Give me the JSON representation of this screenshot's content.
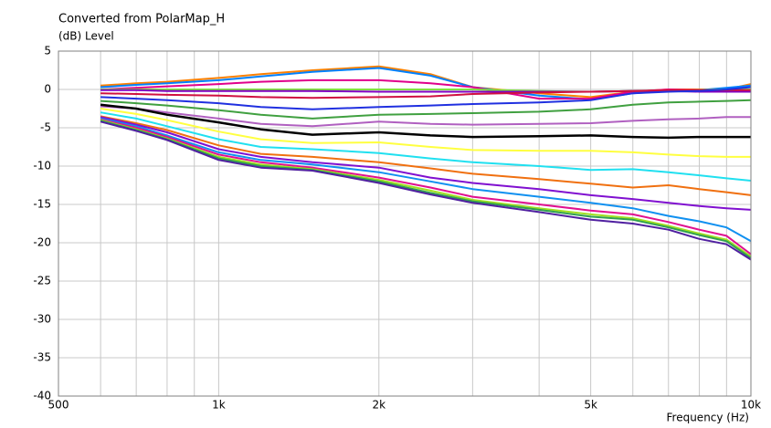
{
  "chart_data": {
    "type": "line",
    "title": "Converted from PolarMap_H",
    "ylabel": "(dB)  Level",
    "xlabel": "Frequency (Hz)",
    "xscale": "log",
    "grid": true,
    "xlim": [
      500,
      10000
    ],
    "xticks": [
      500,
      {
        "value": 1000,
        "label": "1k"
      },
      {
        "value": 2000,
        "label": "2k"
      },
      {
        "value": 5000,
        "label": "5k"
      },
      {
        "value": 10000,
        "label": "10k"
      }
    ],
    "xminor": [
      600,
      700,
      800,
      900,
      3000,
      4000,
      6000,
      7000,
      8000,
      9000
    ],
    "ylim": [
      -40,
      5
    ],
    "yticks": [
      5,
      0,
      -5,
      -10,
      -15,
      -20,
      -25,
      -30,
      -35,
      -40
    ],
    "x": [
      600,
      700,
      800,
      1000,
      1200,
      1500,
      2000,
      2500,
      3000,
      4000,
      5000,
      6000,
      7000,
      8000,
      9000,
      10000
    ],
    "series": [
      {
        "color": "#ff8000",
        "values": [
          0.5,
          0.8,
          1,
          1.5,
          2,
          2.5,
          3,
          2,
          0.3,
          -0.5,
          -1,
          -0.3,
          0,
          0,
          0,
          0.7
        ]
      },
      {
        "color": "#0080ff",
        "values": [
          0.3,
          0.6,
          0.8,
          1.2,
          1.7,
          2.3,
          2.8,
          1.8,
          0.3,
          -0.8,
          -1.3,
          -0.5,
          -0.2,
          -0.1,
          0.2,
          0.5
        ]
      },
      {
        "color": "#e0008c",
        "values": [
          0,
          0.2,
          0.4,
          0.7,
          1,
          1.2,
          1.2,
          0.8,
          0.3,
          -1.2,
          -1.2,
          -0.3,
          0,
          -0.1,
          -0.1,
          -0.2
        ]
      },
      {
        "color": "#80e040",
        "values": [
          0,
          0,
          0,
          0,
          0,
          0,
          0,
          0,
          0,
          -0.2,
          -0.3,
          -0.2,
          -0.2,
          -0.1,
          0,
          0
        ]
      },
      {
        "color": "#8000c0",
        "values": [
          -0.1,
          -0.1,
          -0.2,
          -0.2,
          -0.2,
          -0.2,
          -0.3,
          -0.3,
          -0.3,
          -0.3,
          -0.3,
          -0.2,
          -0.2,
          -0.3,
          -0.3,
          -0.3
        ]
      },
      {
        "color": "#d01040",
        "values": [
          -0.5,
          -0.6,
          -0.7,
          -0.8,
          -1,
          -1.1,
          -1,
          -0.9,
          -0.6,
          -0.4,
          -0.3,
          -0.2,
          -0.1,
          -0.1,
          -0.1,
          -0.1
        ]
      },
      {
        "color": "#2030e0",
        "values": [
          -1,
          -1.2,
          -1.4,
          -1.8,
          -2.3,
          -2.6,
          -2.3,
          -2.1,
          -1.9,
          -1.7,
          -1.4,
          -0.5,
          -0.3,
          -0.2,
          0,
          0.3
        ]
      },
      {
        "color": "#40a040",
        "values": [
          -1.5,
          -1.8,
          -2.1,
          -2.7,
          -3.3,
          -3.8,
          -3.3,
          -3.2,
          -3.1,
          -2.9,
          -2.6,
          -2,
          -1.7,
          -1.6,
          -1.5,
          -1.4
        ]
      },
      {
        "color": "#b060c0",
        "values": [
          -2.2,
          -2.5,
          -3,
          -3.8,
          -4.5,
          -4.8,
          -4.2,
          -4.5,
          -4.6,
          -4.5,
          -4.4,
          -4.1,
          -3.9,
          -3.8,
          -3.6,
          -3.6
        ]
      },
      {
        "color": "#000000",
        "values": [
          -2,
          -2.5,
          -3.3,
          -4.3,
          -5.2,
          -5.9,
          -5.6,
          -6,
          -6.2,
          -6.1,
          -6,
          -6.2,
          -6.3,
          -6.2,
          -6.2,
          -6.2
        ]
      },
      {
        "color": "#ffff40",
        "values": [
          -2.5,
          -3.2,
          -4,
          -5.5,
          -6.5,
          -7,
          -6.9,
          -7.5,
          -7.9,
          -8,
          -8,
          -8.2,
          -8.5,
          -8.7,
          -8.8,
          -8.8
        ]
      },
      {
        "color": "#20e0f0",
        "values": [
          -3,
          -3.8,
          -4.8,
          -6.5,
          -7.5,
          -7.8,
          -8.3,
          -9,
          -9.5,
          -10,
          -10.5,
          -10.4,
          -10.8,
          -11.2,
          -11.6,
          -11.9
        ]
      },
      {
        "color": "#f07010",
        "values": [
          -3.5,
          -4.4,
          -5.3,
          -7.3,
          -8.4,
          -8.8,
          -9.5,
          -10.3,
          -11,
          -11.7,
          -12.3,
          -12.8,
          -12.5,
          -13,
          -13.4,
          -13.8
        ]
      },
      {
        "color": "#8010d0",
        "values": [
          -3.6,
          -4.6,
          -5.6,
          -7.8,
          -8.8,
          -9.5,
          -10.2,
          -11.5,
          -12.2,
          -13,
          -13.8,
          -14.3,
          -14.8,
          -15.2,
          -15.5,
          -15.7
        ]
      },
      {
        "color": "#1090f0",
        "values": [
          -3.8,
          -4.8,
          -6,
          -8.2,
          -9.2,
          -9.8,
          -10.8,
          -12,
          -13,
          -14,
          -14.8,
          -15.5,
          -16.5,
          -17.2,
          -18,
          -19.8
        ]
      },
      {
        "color": "#e01090",
        "values": [
          -3.9,
          -5,
          -6.2,
          -8.5,
          -9.5,
          -10.2,
          -11.5,
          -12.8,
          -14,
          -15,
          -15.8,
          -16.3,
          -17.3,
          -18.3,
          -19.1,
          -21.5
        ]
      },
      {
        "color": "#a0e020",
        "values": [
          -4,
          -5.2,
          -6.4,
          -8.8,
          -9.8,
          -10.4,
          -11.8,
          -13.2,
          -14.4,
          -15.5,
          -16.3,
          -16.8,
          -17.8,
          -18.8,
          -19.6,
          -21.8
        ]
      },
      {
        "color": "#30a050",
        "values": [
          -4.1,
          -5.3,
          -6.5,
          -9,
          -10,
          -10.5,
          -12,
          -13.5,
          -14.6,
          -15.7,
          -16.6,
          -17,
          -18,
          -19,
          -19.8,
          -22
        ]
      },
      {
        "color": "#5020a0",
        "values": [
          -4.2,
          -5.4,
          -6.6,
          -9.2,
          -10.2,
          -10.6,
          -12.2,
          -13.7,
          -14.8,
          -16,
          -17,
          -17.5,
          -18.3,
          -19.5,
          -20.2,
          -22.2
        ]
      }
    ]
  }
}
